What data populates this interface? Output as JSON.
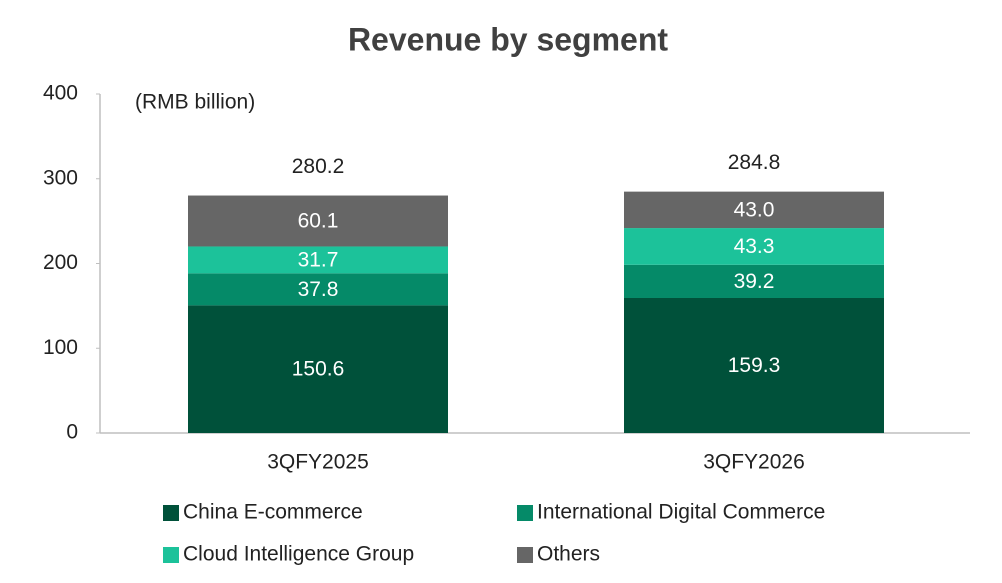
{
  "chart_data": {
    "type": "stacked-bar",
    "title": "Revenue by segment",
    "unit": "(RMB billion)",
    "categories": [
      "3QFY2025",
      "3QFY2026"
    ],
    "series": [
      {
        "name": "China E-commerce",
        "color": "#00513a",
        "values": [
          150.6,
          159.3
        ]
      },
      {
        "name": "International Digital Commerce",
        "color": "#058a68",
        "values": [
          37.8,
          39.2
        ]
      },
      {
        "name": "Cloud Intelligence Group",
        "color": "#1cc29a",
        "values": [
          31.7,
          43.3
        ]
      },
      {
        "name": "Others",
        "color": "#666666",
        "values": [
          60.1,
          43.0
        ],
        "value_labels": [
          "60.1",
          "43.0"
        ]
      }
    ],
    "totals": [
      280.2,
      284.8
    ],
    "ylim": [
      0,
      400
    ],
    "yticks": [
      0,
      100,
      200,
      300,
      400
    ]
  }
}
